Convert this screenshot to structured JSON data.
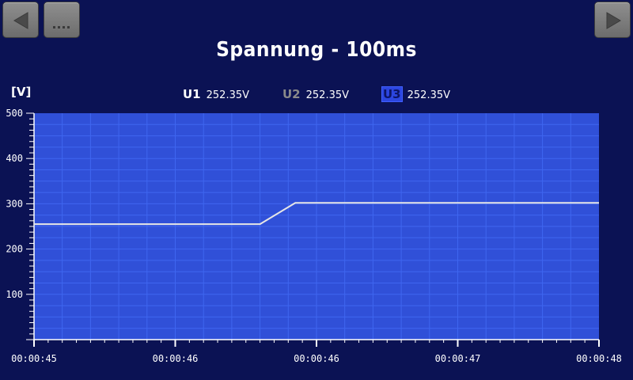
{
  "navigation": {
    "prev_icon": "triangle-left-icon",
    "menu_icon": "ellipsis-icon",
    "next_icon": "triangle-right-icon"
  },
  "header": {
    "title": "Spannung - 100ms"
  },
  "legend": [
    {
      "name": "U1",
      "value": "252.35V",
      "color": "#ffffff"
    },
    {
      "name": "U2",
      "value": "252.35V",
      "color": "#8a8a8a"
    },
    {
      "name": "U3",
      "value": "252.35V",
      "color": "#1a2bd6"
    }
  ],
  "colors": {
    "background": "#0b1254",
    "plot_background": "#3050d8",
    "grid": "#3f66f0",
    "line": "#e6e6e6",
    "button": "#7a7a7a"
  },
  "chart_data": {
    "type": "line",
    "ylabel": "[V]",
    "ylim": [
      0,
      500
    ],
    "y_ticks": [
      "100",
      "200",
      "300",
      "400",
      "500"
    ],
    "x_tick_labels": [
      "00:00:45",
      "00:00:46",
      "00:00:46",
      "00:00:47",
      "00:00:48"
    ],
    "x_range_seconds": [
      0,
      4
    ],
    "series": [
      {
        "x": [
          0,
          1.6,
          1.85,
          4
        ],
        "values": [
          255,
          255,
          302,
          302
        ]
      }
    ],
    "grid": true
  }
}
